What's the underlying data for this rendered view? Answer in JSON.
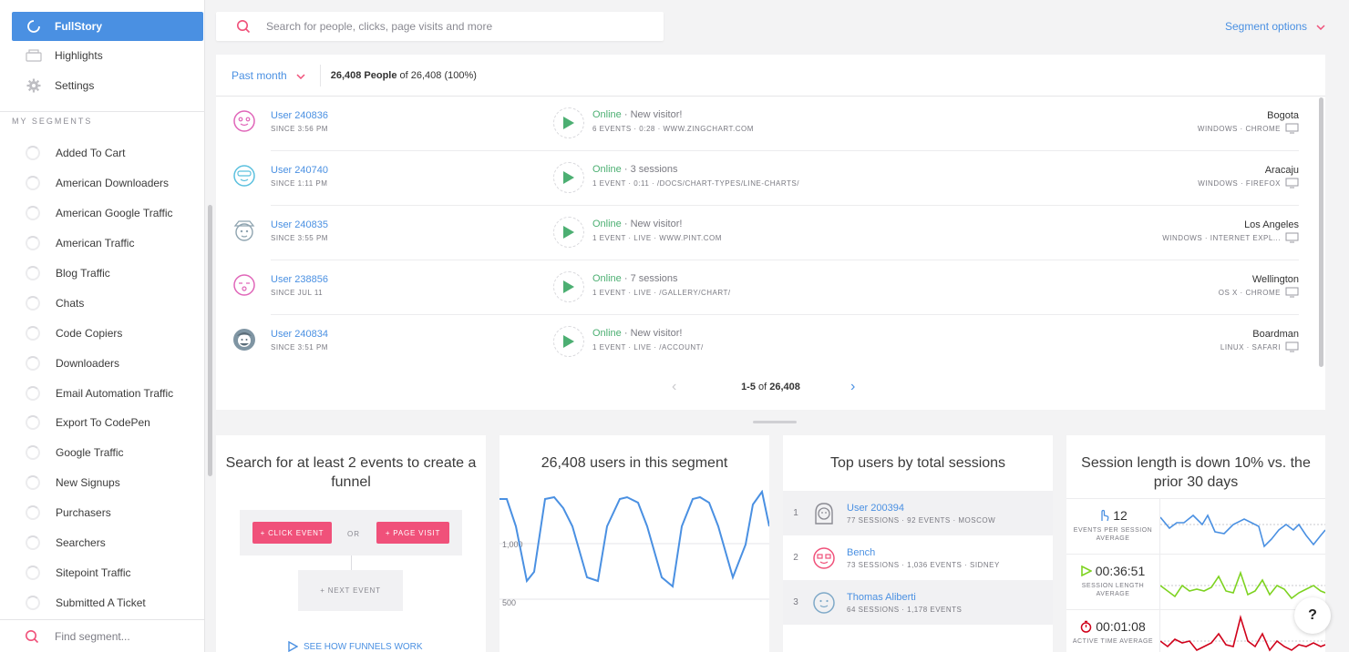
{
  "nav": {
    "items": [
      {
        "label": "FullStory",
        "icon": "fullstory-logo-icon",
        "active": true
      },
      {
        "label": "Highlights",
        "icon": "highlights-icon"
      },
      {
        "label": "Settings",
        "icon": "gear-icon"
      }
    ]
  },
  "segments": {
    "title": "MY SEGMENTS",
    "items": [
      "Added To Cart",
      "American Downloaders",
      "American Google Traffic",
      "American Traffic",
      "Blog Traffic",
      "Chats",
      "Code Copiers",
      "Downloaders",
      "Email Automation Traffic",
      "Export To CodePen",
      "Google Traffic",
      "New Signups",
      "Purchasers",
      "Searchers",
      "Sitepoint Traffic",
      "Submitted A Ticket"
    ],
    "find_placeholder": "Find segment..."
  },
  "search": {
    "placeholder": "Search for people, clicks, page visits and more"
  },
  "segment_options_label": "Segment options",
  "header": {
    "period": "Past month",
    "people_bold": "26,408 People",
    "people_rest": " of 26,408 (100%)"
  },
  "users": [
    {
      "name": "User 240836",
      "since": "SINCE 3:56 PM",
      "status": "Online",
      "note": " · New visitor!",
      "stats": "6 EVENTS · 0:28 · WWW.ZINGCHART.COM",
      "city": "Bogota",
      "os_browser": "WINDOWS · CHROME",
      "avatar_color": "#e066b9"
    },
    {
      "name": "User 240740",
      "since": "SINCE 1:11 PM",
      "status": "Online",
      "note": " · 3 sessions",
      "stats": "1 EVENT · 0:11 · /DOCS/CHART-TYPES/LINE-CHARTS/",
      "city": "Aracaju",
      "os_browser": "WINDOWS · FIREFOX",
      "avatar_color": "#5bc0de"
    },
    {
      "name": "User 240835",
      "since": "SINCE 3:55 PM",
      "status": "Online",
      "note": " · New visitor!",
      "stats": "1 EVENT · LIVE · WWW.PINT.COM",
      "city": "Los Angeles",
      "os_browser": "WINDOWS · INTERNET EXPL...",
      "avatar_color": "#8fa4b0"
    },
    {
      "name": "User 238856",
      "since": "SINCE JUL 11",
      "status": "Online",
      "note": " · 7 sessions",
      "stats": "1 EVENT · LIVE · /GALLERY/CHART/",
      "city": "Wellington",
      "os_browser": "OS X · CHROME",
      "avatar_color": "#e066b9"
    },
    {
      "name": "User 240834",
      "since": "SINCE 3:51 PM",
      "status": "Online",
      "note": " · New visitor!",
      "stats": "1 EVENT · LIVE · /ACCOUNT/",
      "city": "Boardman",
      "os_browser": "LINUX · SAFARI",
      "avatar_color": "#7f95a3"
    }
  ],
  "pager": {
    "range": "1-5",
    "of": " of ",
    "total": "26,408"
  },
  "funnel": {
    "title": "Search for at least 2 events to create a funnel",
    "click_event": "+ CLICK EVENT",
    "or": "OR",
    "page_visit": "+ PAGE VISIT",
    "next_event": "+ NEXT EVENT",
    "see_how": "SEE HOW FUNNELS WORK"
  },
  "segment_chart": {
    "title": "26,408 users in this segment",
    "tick_labels": [
      "1,000",
      "500"
    ]
  },
  "top_users": {
    "title": "Top users by total sessions",
    "rows": [
      {
        "rank": "1",
        "name": "User 200394",
        "stats": "77 SESSIONS · 92 EVENTS · MOSCOW",
        "avatar_color": "#8a8a92"
      },
      {
        "rank": "2",
        "name": "Bench",
        "stats": "73 SESSIONS · 1,036 EVENTS · SIDNEY",
        "avatar_color": "#f0517a"
      },
      {
        "rank": "3",
        "name": "Thomas Aliberti",
        "stats": "64 SESSIONS · 1,178 EVENTS",
        "avatar_color": "#7fa9c8"
      }
    ]
  },
  "session_length": {
    "title": "Session length is down 10% vs. the prior 30 days",
    "metrics": [
      {
        "value": "12",
        "label": "EVENTS PER SESSION AVERAGE",
        "color": "#4a90e2",
        "icon": "pointer-icon"
      },
      {
        "value": "00:36:51",
        "label": "SESSION LENGTH AVERAGE",
        "color": "#7ed321",
        "icon": "play-icon"
      },
      {
        "value": "00:01:08",
        "label": "ACTIVE TIME AVERAGE",
        "color": "#d0021b",
        "icon": "stopwatch-icon"
      }
    ]
  },
  "help_label": "?",
  "colors": {
    "accent": "#4a90e2",
    "online": "#4caf72",
    "pink": "#f0517a"
  }
}
